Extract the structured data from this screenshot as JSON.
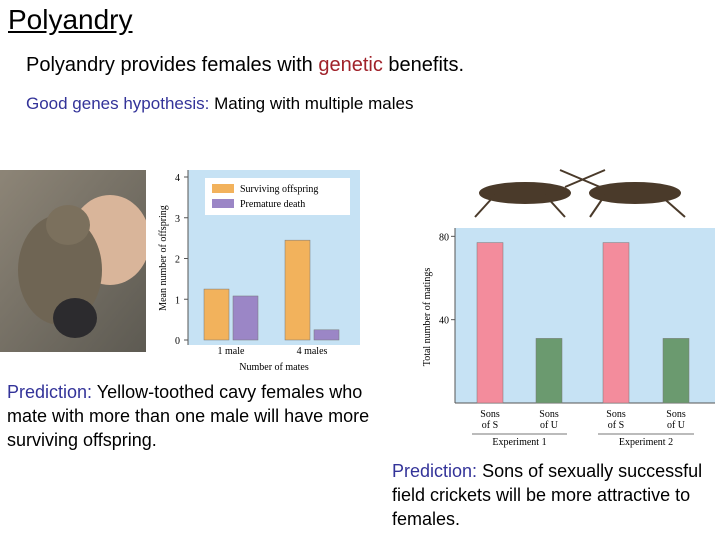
{
  "title": "Polyandry",
  "subtitle": {
    "before": "Polyandry provides females with",
    "highlight": "genetic",
    "after": "benefits."
  },
  "hypothesis": {
    "label": "Good genes hypothesis:",
    "text": "Mating with multiple males"
  },
  "predictions": [
    {
      "label": "Prediction:",
      "text": "Yellow-toothed cavy females who mate with more than one male will have more surviving offspring."
    },
    {
      "label": "Prediction:",
      "text": "Sons of sexually successful field crickets will be more attractive to females."
    }
  ],
  "chart_data": [
    {
      "type": "bar",
      "y_label": "Mean number of offspring",
      "x_label": "Number of mates",
      "categories": [
        "1 male",
        "4 males"
      ],
      "series": [
        {
          "name": "Surviving offspring",
          "color": "#f2b25c",
          "values": [
            1.25,
            2.45
          ]
        },
        {
          "name": "Premature death",
          "color": "#9b86c6",
          "values": [
            1.08,
            0.25
          ]
        }
      ],
      "ylim": [
        0,
        4
      ],
      "yticks": [
        0,
        1,
        2,
        3,
        4
      ],
      "background": "#c6e2f4"
    },
    {
      "type": "bar",
      "y_label": "Total number of matings",
      "categories": [
        "Sons of S",
        "Sons of U",
        "Sons of S",
        "Sons of U"
      ],
      "groups": [
        "Experiment 1",
        "Experiment 2"
      ],
      "values": [
        77,
        31,
        77,
        31
      ],
      "colors": [
        "#f38c9c",
        "#6b9a6f",
        "#f38c9c",
        "#6b9a6f"
      ],
      "ylim": [
        0,
        84
      ],
      "yticks": [
        40,
        80
      ],
      "background": "#c6e2f4"
    }
  ]
}
